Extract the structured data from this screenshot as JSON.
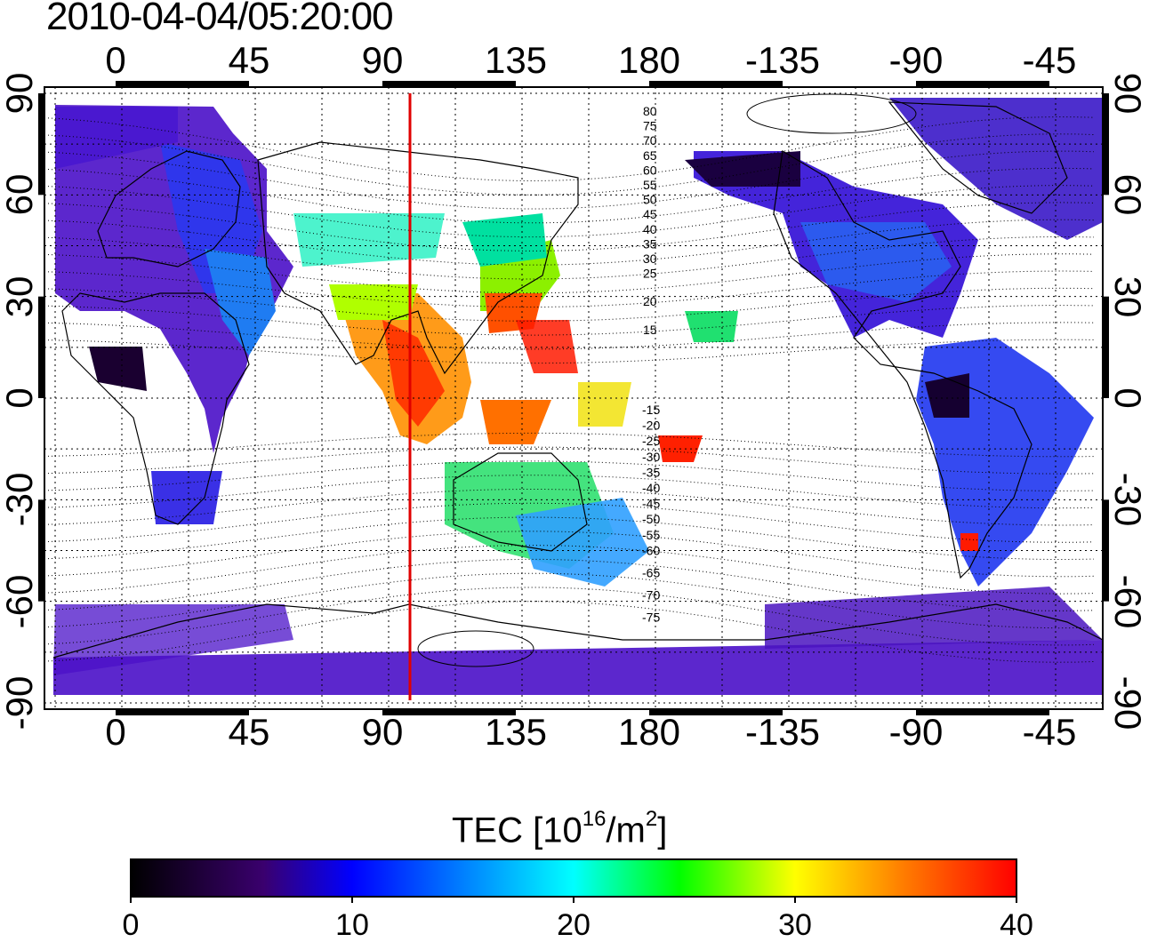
{
  "title": "2010-04-04/05:20:00",
  "map": {
    "lon_ticks": [
      "0",
      "45",
      "90",
      "135",
      "180",
      "-135",
      "-90",
      "-45"
    ],
    "lat_ticks_left": [
      "90",
      "60",
      "30",
      "0",
      "-30",
      "-60",
      "-90"
    ],
    "lat_ticks_right": [
      "90",
      "60",
      "30",
      "0",
      "-30",
      "-60",
      "-90"
    ],
    "terminator_longitude": 100,
    "terminator_color": "#e00000",
    "grid": "dotted",
    "magnetic_latitude_labels": [
      "80",
      "75",
      "70",
      "65",
      "60",
      "55",
      "50",
      "45",
      "40",
      "35",
      "30",
      "25",
      "20",
      "15",
      "-15",
      "-20",
      "-25",
      "-30",
      "-35",
      "-40",
      "-45",
      "-50",
      "-55",
      "-60",
      "-65",
      "-70",
      "-75"
    ]
  },
  "colorbar": {
    "label_main": "TEC  [10",
    "label_exp1": "16",
    "label_mid": "/m",
    "label_exp2": "2",
    "label_end": "]",
    "min": 0,
    "max": 40,
    "ticks": [
      "0",
      "10",
      "20",
      "30",
      "40"
    ],
    "colormap": [
      "#000000",
      "#3a006e",
      "#0000ff",
      "#00ffff",
      "#00ff00",
      "#ffff00",
      "#ff0000"
    ]
  }
}
